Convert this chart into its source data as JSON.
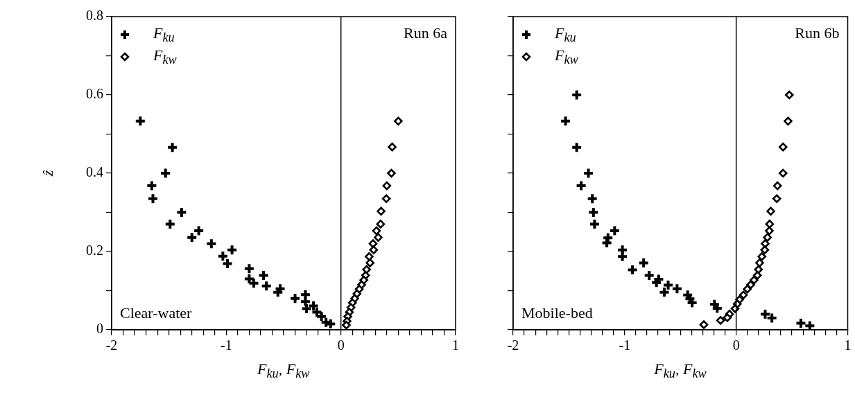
{
  "chart_data": [
    {
      "type": "scatter",
      "xlabel": "F$_{ku}$, F$_{kw}$",
      "ylabel": "ẑ",
      "legend": "top left",
      "annotations": [
        "Run 6a",
        "Clear-water"
      ],
      "xlim": [
        -2,
        1
      ],
      "ylim": [
        0,
        0.8
      ],
      "xticks": [
        -2,
        {
          "value": -1.9,
          "label": null
        },
        {
          "value": -1.8,
          "label": null
        },
        {
          "value": -1.7,
          "label": null
        },
        {
          "value": -1.6,
          "label": null
        },
        {
          "value": -1.5,
          "label": null
        },
        {
          "value": -1.4,
          "label": null
        },
        {
          "value": -1.3,
          "label": null
        },
        {
          "value": -1.2,
          "label": null
        },
        {
          "value": -1.1,
          "label": null
        },
        -1,
        {
          "value": -0.9,
          "label": null
        },
        {
          "value": -0.8,
          "label": null
        },
        {
          "value": -0.7,
          "label": null
        },
        {
          "value": -0.6,
          "label": null
        },
        {
          "value": -0.5,
          "label": null
        },
        {
          "value": -0.4,
          "label": null
        },
        {
          "value": -0.3,
          "label": null
        },
        {
          "value": -0.2,
          "label": null
        },
        {
          "value": -0.1,
          "label": null
        },
        0,
        {
          "value": 0.1,
          "label": null
        },
        {
          "value": 0.2,
          "label": null
        },
        {
          "value": 0.3,
          "label": null
        },
        {
          "value": 0.4,
          "label": null
        },
        {
          "value": 0.5,
          "label": null
        },
        {
          "value": 0.6,
          "label": null
        },
        {
          "value": 0.7,
          "label": null
        },
        {
          "value": 0.8,
          "label": null
        },
        {
          "value": 0.9,
          "label": null
        },
        1
      ],
      "yticks": [
        0,
        {
          "value": 0.1,
          "label": null
        },
        0.2,
        {
          "value": 0.3,
          "label": null
        },
        0.4,
        {
          "value": 0.5,
          "label": null
        },
        0.6,
        {
          "value": 0.7,
          "label": null
        },
        0.8
      ],
      "ref_lines": [
        {
          "axis": "x",
          "value": 0,
          "color": "#000000"
        }
      ],
      "series": [
        {
          "name": "F$_{ku}$",
          "color": "#000000",
          "marker": "cross",
          "x": [
            -1.75,
            -1.47,
            -1.53,
            -1.65,
            -1.64,
            -1.39,
            -1.49,
            -1.3,
            -1.24,
            -1.13,
            -1.03,
            -0.99,
            -0.95,
            -0.8,
            -0.8,
            -0.76,
            -0.675,
            -0.65,
            -0.55,
            -0.53,
            -0.4,
            -0.31,
            -0.31,
            -0.3,
            -0.24,
            -0.21,
            -0.17,
            -0.13,
            -0.09
          ],
          "values": [
            0.533,
            0.466,
            0.4,
            0.368,
            0.335,
            0.3,
            0.27,
            0.236,
            0.253,
            0.22,
            0.188,
            0.169,
            0.204,
            0.156,
            0.13,
            0.119,
            0.139,
            0.112,
            0.096,
            0.105,
            0.08,
            0.09,
            0.072,
            0.054,
            0.061,
            0.045,
            0.034,
            0.019,
            0.015
          ]
        },
        {
          "name": "F$_{kw}$",
          "color": "#000000",
          "marker": "diamond",
          "x": [
            0.5,
            0.447,
            0.44,
            0.4,
            0.396,
            0.35,
            0.346,
            0.31,
            0.325,
            0.28,
            0.285,
            0.246,
            0.254,
            0.224,
            0.215,
            0.2,
            0.18,
            0.16,
            0.14,
            0.12,
            0.1,
            0.087,
            0.073,
            0.06,
            0.053,
            0.047
          ],
          "values": [
            0.533,
            0.467,
            0.4,
            0.368,
            0.335,
            0.303,
            0.27,
            0.253,
            0.236,
            0.22,
            0.204,
            0.187,
            0.171,
            0.154,
            0.139,
            0.127,
            0.115,
            0.104,
            0.092,
            0.08,
            0.069,
            0.057,
            0.045,
            0.034,
            0.022,
            0.012
          ]
        }
      ]
    },
    {
      "type": "scatter",
      "xlabel": "F$_{ku}$, F$_{kw}$",
      "legend": "top left",
      "annotations": [
        "Run 6b",
        "Mobile-bed"
      ],
      "tick_labels": "x",
      "xlim": [
        -2,
        1
      ],
      "ylim": [
        0,
        0.8
      ],
      "xticks": [
        -2,
        {
          "value": -1.9,
          "label": null
        },
        {
          "value": -1.8,
          "label": null
        },
        {
          "value": -1.7,
          "label": null
        },
        {
          "value": -1.6,
          "label": null
        },
        {
          "value": -1.5,
          "label": null
        },
        {
          "value": -1.4,
          "label": null
        },
        {
          "value": -1.3,
          "label": null
        },
        {
          "value": -1.2,
          "label": null
        },
        {
          "value": -1.1,
          "label": null
        },
        -1,
        {
          "value": -0.9,
          "label": null
        },
        {
          "value": -0.8,
          "label": null
        },
        {
          "value": -0.7,
          "label": null
        },
        {
          "value": -0.6,
          "label": null
        },
        {
          "value": -0.5,
          "label": null
        },
        {
          "value": -0.4,
          "label": null
        },
        {
          "value": -0.3,
          "label": null
        },
        {
          "value": -0.2,
          "label": null
        },
        {
          "value": -0.1,
          "label": null
        },
        0,
        {
          "value": 0.1,
          "label": null
        },
        {
          "value": 0.2,
          "label": null
        },
        {
          "value": 0.3,
          "label": null
        },
        {
          "value": 0.4,
          "label": null
        },
        {
          "value": 0.5,
          "label": null
        },
        {
          "value": 0.6,
          "label": null
        },
        {
          "value": 0.7,
          "label": null
        },
        {
          "value": 0.8,
          "label": null
        },
        {
          "value": 0.9,
          "label": null
        },
        1
      ],
      "yticks": [
        0,
        {
          "value": 0.1,
          "label": null
        },
        0.2,
        {
          "value": 0.3,
          "label": null
        },
        0.4,
        {
          "value": 0.5,
          "label": null
        },
        0.6,
        {
          "value": 0.7,
          "label": null
        },
        0.8
      ],
      "ref_lines": [
        {
          "axis": "x",
          "value": 0,
          "color": "#000000"
        }
      ],
      "series": [
        {
          "name": "F$_{ku}$",
          "color": "#000000",
          "marker": "cross",
          "x": [
            -1.43,
            -1.53,
            -1.43,
            -1.325,
            -1.39,
            -1.29,
            -1.28,
            -1.27,
            -1.16,
            -1.15,
            -1.09,
            -1.02,
            -1.02,
            -0.93,
            -0.83,
            -0.78,
            -0.715,
            -0.695,
            -0.645,
            -0.61,
            -0.53,
            -0.435,
            -0.415,
            -0.395,
            -0.195,
            -0.17,
            0.26,
            0.32,
            0.58,
            0.66
          ],
          "values": [
            0.6,
            0.533,
            0.466,
            0.4,
            0.368,
            0.335,
            0.3,
            0.27,
            0.222,
            0.235,
            0.253,
            0.204,
            0.187,
            0.153,
            0.171,
            0.139,
            0.121,
            0.129,
            0.096,
            0.114,
            0.105,
            0.089,
            0.079,
            0.069,
            0.065,
            0.055,
            0.04,
            0.03,
            0.017,
            0.01
          ]
        },
        {
          "name": "F$_{kw}$",
          "color": "#000000",
          "marker": "diamond",
          "x": [
            0.476,
            0.465,
            0.42,
            0.42,
            0.37,
            0.364,
            0.31,
            0.3,
            0.297,
            0.28,
            0.26,
            0.256,
            0.23,
            0.21,
            0.2,
            0.19,
            0.16,
            0.13,
            0.1,
            0.065,
            0.03,
            0.01,
            -0.01,
            -0.06,
            -0.08,
            -0.14,
            -0.29
          ],
          "values": [
            0.6,
            0.533,
            0.467,
            0.4,
            0.368,
            0.335,
            0.303,
            0.27,
            0.253,
            0.236,
            0.22,
            0.204,
            0.187,
            0.171,
            0.154,
            0.139,
            0.127,
            0.115,
            0.104,
            0.089,
            0.077,
            0.066,
            0.054,
            0.04,
            0.031,
            0.024,
            0.013
          ]
        }
      ]
    }
  ]
}
